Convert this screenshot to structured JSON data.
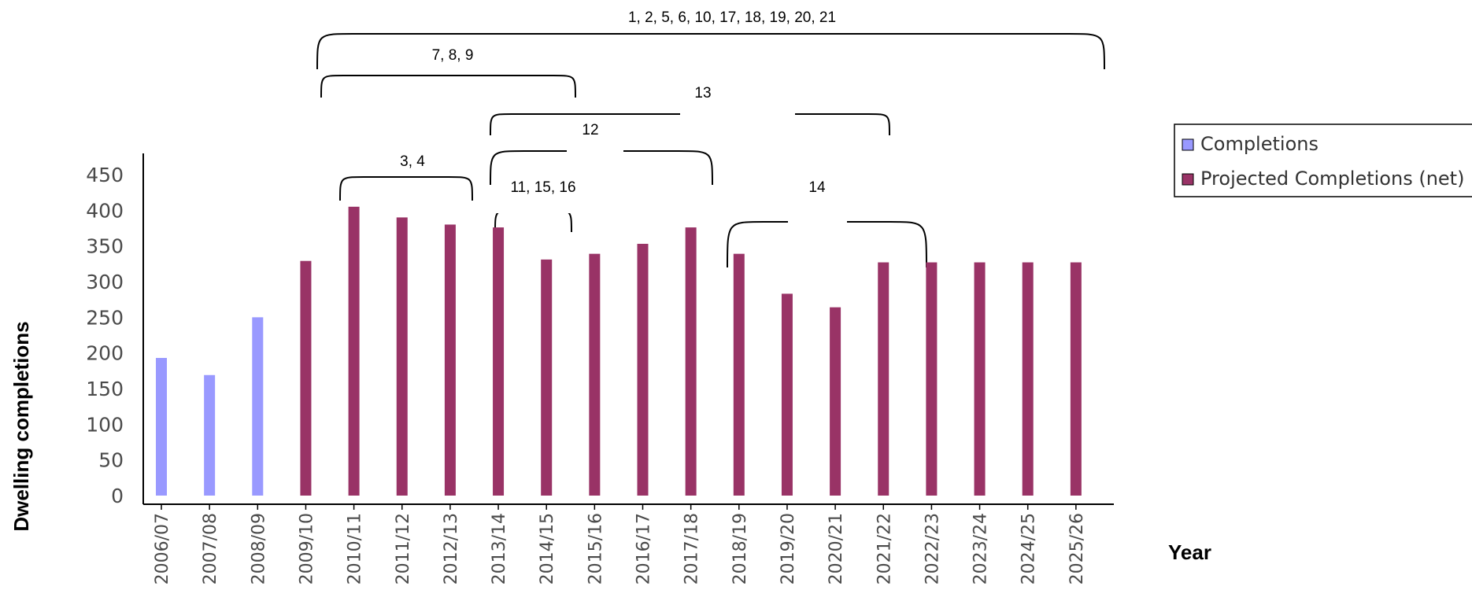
{
  "chart_data": {
    "type": "bar",
    "title": "",
    "xlabel": "Year",
    "ylabel": "Dwelling completions",
    "ylim": [
      0,
      450
    ],
    "yticks": [
      0,
      50,
      100,
      150,
      200,
      250,
      300,
      350,
      400,
      450
    ],
    "categories": [
      "2006/07",
      "2007/08",
      "2008/09",
      "2009/10",
      "2010/11",
      "2011/12",
      "2012/13",
      "2013/14",
      "2014/15",
      "2015/16",
      "2016/17",
      "2017/18",
      "2018/19",
      "2019/20",
      "2020/21",
      "2021/22",
      "2022/23",
      "2023/24",
      "2024/25",
      "2025/26"
    ],
    "series": [
      {
        "name": "Completions",
        "color": "#9999ff",
        "values": [
          193,
          169,
          250,
          null,
          null,
          null,
          null,
          null,
          null,
          null,
          null,
          null,
          null,
          null,
          null,
          null,
          null,
          null,
          null,
          null
        ]
      },
      {
        "name": "Projected Completions (net)",
        "color": "#993366",
        "values": [
          null,
          null,
          null,
          329,
          405,
          390,
          380,
          376,
          331,
          339,
          353,
          376,
          339,
          283,
          264,
          327,
          327,
          327,
          327,
          327
        ]
      }
    ],
    "legend_position": "right",
    "grid": false,
    "annotations": [
      {
        "label": "1, 2, 5, 6, 10, 17, 18, 19, 20, 21",
        "from": "2009/10",
        "to": "2025/26"
      },
      {
        "label": "7, 8, 9",
        "from": "2009/10",
        "to": "2014/15"
      },
      {
        "label": "13",
        "from": "2013/14",
        "to": "2021/22"
      },
      {
        "label": "12",
        "from": "2013/14",
        "to": "2017/18"
      },
      {
        "label": "3, 4",
        "from": "2010/11",
        "to": "2012/13"
      },
      {
        "label": "11, 15, 16",
        "from": "2013/14",
        "to": "2014/15"
      },
      {
        "label": "14",
        "from": "2018/19",
        "to": "2021/22"
      }
    ]
  }
}
